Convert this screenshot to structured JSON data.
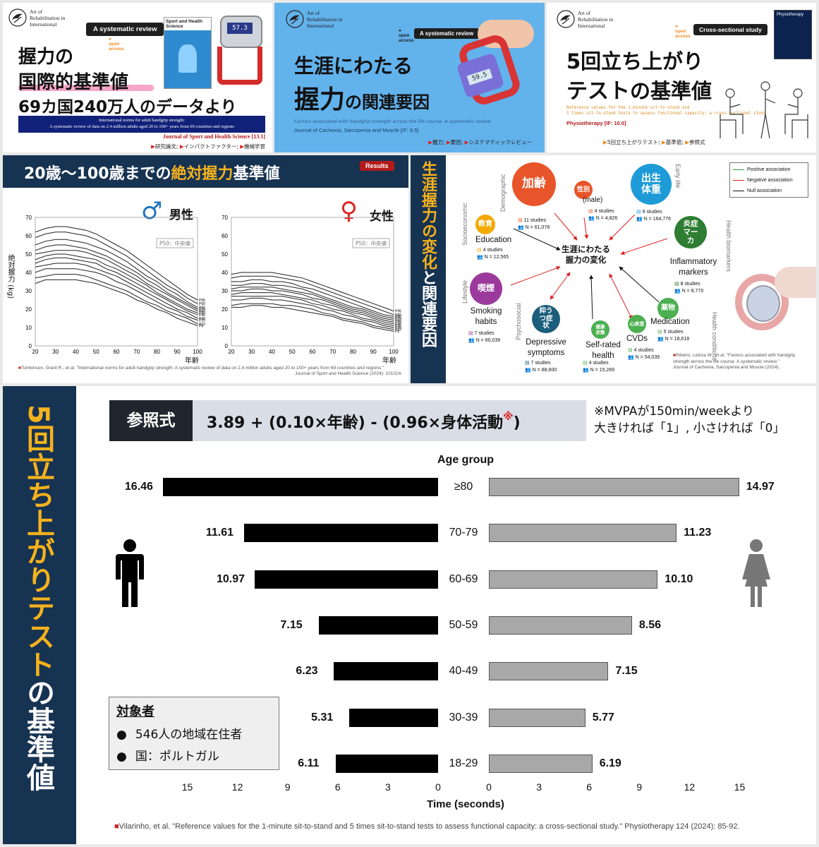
{
  "brand": {
    "line1": "Art of",
    "line2": "Rehabilitation in",
    "line3": "International"
  },
  "open_access": {
    "line1": "open",
    "line2": "access"
  },
  "card1": {
    "badge": "A systematic review",
    "journal_cover": "Sport and Health Science",
    "device_readout": "57.3",
    "title_line1": "握力の",
    "title_line2": "国際的基準値",
    "title_line3": "69カ国240万人のデータより",
    "en_line1": "International norms for adult handgrip strength:",
    "en_line2": "A systematic review of data on 2.4 million adults aged 20 to 100+ years from 69 countries and regions",
    "journal": "Journal of Sport and Health Science [13.1]",
    "tags": [
      "研究論文",
      "インパクトファクター",
      "機械学習"
    ]
  },
  "card2": {
    "badge": "A systematic review",
    "device_readout": "59.5",
    "title_line1": "生涯にわたる",
    "title_line2a": "握力",
    "title_line2b": "の関連要因",
    "en_title": "Factors associated with handgrip strength across the life course: A systematic review",
    "journal": "Journal of Cachexia, Sarcopenia and Muscle [IF: 9.5]",
    "tags": [
      "握力",
      "要因",
      "システマティックレビュー"
    ]
  },
  "card3": {
    "badge": "Cross-sectional study",
    "journal_cover": "Physiotherapy",
    "title_line1": "5回立ち上がり",
    "title_line2a": "テスト",
    "title_line2b": "の基準値",
    "en_line1": "Reference values for the 1-minute sit-to-stand and",
    "en_line2": "5 times sit-to-stand tests to assess functional capacity: a cross-sectional study",
    "journal": "Physiotherapy [IF: 10.0]",
    "tags": [
      "5回立ち上がりテスト",
      "基準値",
      "参照式"
    ]
  },
  "grip": {
    "title_a": "20歳〜100歳までの",
    "title_b": "絶対握力",
    "title_c": "基準値",
    "badge": "Results",
    "ylabel": "絶対握力 (kg)",
    "xlabel": "年齢",
    "male": "男性",
    "female": "女性",
    "legend_box": "P50：中央値",
    "citation_line1": "Tomkinson, Grant R., et al. \"International norms for adult handgrip strength: A systematic review of data on 2.4 million adults aged 20 to 100+ years from 69 countries and regions.\"",
    "citation_line2": "Journal of Sport and Health Science (2024): 101014."
  },
  "chart_data": [
    {
      "type": "line",
      "title": "男性",
      "xlabel": "年齢",
      "ylabel": "絶対握力 (kg)",
      "x": [
        20,
        25,
        30,
        35,
        40,
        45,
        50,
        55,
        60,
        65,
        70,
        75,
        80,
        85,
        90,
        95,
        100
      ],
      "xticks": [
        20,
        30,
        40,
        50,
        60,
        70,
        80,
        90,
        100
      ],
      "yticks": [
        0,
        10,
        20,
        30,
        40,
        50,
        60,
        70
      ],
      "xlim": [
        20,
        100
      ],
      "ylim": [
        0,
        70
      ],
      "grid": false,
      "series": [
        {
          "name": "P95",
          "values": [
            62,
            64,
            65,
            65,
            64,
            63,
            61,
            58,
            55,
            52,
            48,
            44,
            40,
            36,
            32,
            28,
            25
          ]
        },
        {
          "name": "P90",
          "values": [
            59,
            61,
            62,
            62,
            61,
            60,
            58,
            55,
            52,
            49,
            45,
            41,
            37,
            33,
            30,
            26,
            23
          ]
        },
        {
          "name": "P80",
          "values": [
            55,
            57,
            58,
            58,
            57,
            56,
            54,
            52,
            49,
            46,
            42,
            38,
            35,
            31,
            28,
            24,
            21
          ]
        },
        {
          "name": "P70",
          "values": [
            52,
            54,
            55,
            55,
            54,
            53,
            51,
            49,
            46,
            43,
            40,
            36,
            33,
            29,
            26,
            23,
            20
          ]
        },
        {
          "name": "P60",
          "values": [
            50,
            51,
            52,
            52,
            52,
            51,
            49,
            47,
            44,
            41,
            38,
            34,
            31,
            28,
            25,
            22,
            19
          ]
        },
        {
          "name": "P50",
          "values": [
            47,
            49,
            50,
            50,
            49,
            48,
            47,
            44,
            42,
            39,
            36,
            33,
            29,
            26,
            23,
            20,
            18
          ]
        },
        {
          "name": "P40",
          "values": [
            45,
            47,
            48,
            48,
            47,
            46,
            45,
            42,
            40,
            37,
            34,
            31,
            28,
            25,
            22,
            19,
            17
          ]
        },
        {
          "name": "P30",
          "values": [
            43,
            44,
            45,
            45,
            45,
            44,
            42,
            40,
            38,
            35,
            32,
            29,
            26,
            23,
            20,
            18,
            15
          ]
        },
        {
          "name": "P20",
          "values": [
            40,
            42,
            42,
            42,
            42,
            41,
            40,
            38,
            35,
            33,
            30,
            27,
            24,
            21,
            19,
            16,
            14
          ]
        },
        {
          "name": "P10",
          "values": [
            37,
            38,
            39,
            39,
            39,
            38,
            36,
            34,
            32,
            30,
            27,
            24,
            22,
            19,
            17,
            15,
            12
          ]
        },
        {
          "name": "P5",
          "values": [
            34,
            36,
            36,
            36,
            36,
            35,
            34,
            32,
            30,
            28,
            25,
            23,
            20,
            18,
            15,
            13,
            11
          ]
        }
      ]
    },
    {
      "type": "line",
      "title": "女性",
      "xlabel": "年齢",
      "x": [
        20,
        25,
        30,
        35,
        40,
        45,
        50,
        55,
        60,
        65,
        70,
        75,
        80,
        85,
        90,
        95,
        100
      ],
      "xticks": [
        20,
        30,
        40,
        50,
        60,
        70,
        80,
        90,
        100
      ],
      "yticks": [
        0,
        10,
        20,
        30,
        40,
        50,
        60,
        70
      ],
      "xlim": [
        20,
        100
      ],
      "ylim": [
        0,
        70
      ],
      "grid": false,
      "series": [
        {
          "name": "P95",
          "values": [
            39,
            40,
            40,
            40,
            40,
            39,
            38,
            37,
            35,
            33,
            31,
            29,
            27,
            25,
            23,
            21,
            19
          ]
        },
        {
          "name": "P90",
          "values": [
            37,
            38,
            38,
            38,
            38,
            37,
            36,
            35,
            33,
            31,
            29,
            27,
            25,
            23,
            21,
            19,
            17
          ]
        },
        {
          "name": "P80",
          "values": [
            35,
            35,
            36,
            36,
            35,
            35,
            34,
            32,
            31,
            29,
            27,
            25,
            23,
            21,
            19,
            17,
            16
          ]
        },
        {
          "name": "P70",
          "values": [
            33,
            33,
            34,
            34,
            33,
            33,
            32,
            31,
            29,
            27,
            25,
            23,
            21,
            20,
            18,
            16,
            15
          ]
        },
        {
          "name": "P60",
          "values": [
            31,
            32,
            32,
            32,
            32,
            31,
            30,
            29,
            28,
            26,
            24,
            22,
            20,
            19,
            17,
            15,
            14
          ]
        },
        {
          "name": "P50",
          "values": [
            30,
            30,
            31,
            31,
            30,
            30,
            29,
            28,
            26,
            25,
            23,
            21,
            19,
            18,
            16,
            14,
            13
          ]
        },
        {
          "name": "P40",
          "values": [
            28,
            29,
            29,
            29,
            29,
            28,
            27,
            26,
            25,
            23,
            22,
            20,
            18,
            17,
            15,
            13,
            12
          ]
        },
        {
          "name": "P30",
          "values": [
            27,
            27,
            27,
            27,
            27,
            27,
            26,
            25,
            23,
            22,
            20,
            19,
            17,
            15,
            14,
            12,
            11
          ]
        },
        {
          "name": "P20",
          "values": [
            25,
            25,
            26,
            26,
            25,
            25,
            24,
            23,
            22,
            20,
            19,
            17,
            16,
            14,
            13,
            11,
            10
          ]
        },
        {
          "name": "P10",
          "values": [
            22,
            23,
            23,
            23,
            23,
            22,
            22,
            21,
            20,
            18,
            17,
            15,
            14,
            13,
            11,
            10,
            9
          ]
        },
        {
          "name": "P5",
          "values": [
            21,
            21,
            22,
            22,
            21,
            21,
            20,
            19,
            18,
            17,
            16,
            14,
            13,
            12,
            10,
            9,
            8
          ]
        }
      ]
    },
    {
      "type": "bar",
      "orientation": "horizontal-butterfly",
      "title": "Age group",
      "xlabel": "Time (seconds)",
      "categories": [
        "≥80",
        "70-79",
        "60-69",
        "50-59",
        "40-49",
        "30-39",
        "18-29"
      ],
      "series": [
        {
          "values": [
            16.46,
            11.61,
            10.97,
            7.15,
            6.23,
            5.31,
            6.11
          ],
          "color": "#000000"
        },
        {
          "values": [
            14.97,
            11.23,
            10.1,
            8.56,
            7.15,
            5.77,
            6.19
          ],
          "color": "#a8a8a8"
        }
      ],
      "xticks_left": [
        15,
        12,
        9,
        6,
        3,
        0
      ],
      "xticks_right": [
        0,
        3,
        6,
        9,
        12,
        15
      ],
      "xlim": [
        0,
        17
      ]
    }
  ],
  "factors": {
    "vertical_title_a": "生涯握力の変化",
    "vertical_title_b": "と",
    "vertical_title_c": "関連要因",
    "center_line1": "生涯にわたる",
    "center_line2": "握力の変化",
    "legend": [
      "Positive association",
      "Negative association",
      "Null association"
    ],
    "categories": [
      "Demographic",
      "Early life",
      "Socioeconomic",
      "Health biomarkers",
      "Lifestyle",
      "Psychosocial",
      "Health conditions"
    ],
    "bubbles": [
      {
        "jp": "加齢",
        "en": "",
        "studies": "11 studies",
        "n": "N = 61,078",
        "color": "#e8552a"
      },
      {
        "jp": "性別",
        "en": "(male)",
        "studies": "4 studies",
        "n": "N = 4,826",
        "color": "#e8552a"
      },
      {
        "jp": "出生体重",
        "en": "",
        "studies": "9 studies",
        "n": "N = 164,776",
        "color": "#1e9bd7"
      },
      {
        "jp": "教育",
        "en": "Education",
        "studies": "4 studies",
        "n": "N = 12,565",
        "color": "#f2a900"
      },
      {
        "jp": "炎症マーカ",
        "en": "Inflammatory markers",
        "studies": "8 studies",
        "n": "N = 8,770",
        "color": "#2e7d32"
      },
      {
        "jp": "喫煙",
        "en": "Smoking habits",
        "studies": "7 studies",
        "n": "N = 60,039",
        "color": "#9b3a9c"
      },
      {
        "jp": "抑うつ症状",
        "en": "Depressive symptoms",
        "studies": "7 studies",
        "n": "N = 88,600",
        "color": "#1b5e7b"
      },
      {
        "jp": "健康状態",
        "en": "Self-rated health",
        "studies": "4 studies",
        "n": "N = 15,269",
        "color": "#4caf50"
      },
      {
        "jp": "心疾患",
        "en": "CVDs",
        "studies": "4 studies",
        "n": "N = 54,039",
        "color": "#4caf50"
      },
      {
        "jp": "薬物",
        "en": "Medication",
        "studies": "5 studies",
        "n": "N = 18,618",
        "color": "#4caf50"
      }
    ],
    "citation_line1": "Ribeiro, Leticia W., et al. \"Factors associated with handgrip",
    "citation_line2": "strength across the life course: A systematic review.\"",
    "citation_line3": "Journal of Cachexia, Sarcopenia and Muscle (2024)."
  },
  "sts": {
    "vertical_title_a": "5回立ち上がりテスト",
    "vertical_title_b": "の基準値",
    "formula_label": "参照式",
    "formula": "3.89 + (0.10×年齢) - (0.96×身体活動",
    "formula_mark": "※",
    "formula_end": ")",
    "note_line1": "※MVPAが150min/weekより",
    "note_line2": "大きければ「1」, 小さければ「0」",
    "subjects_title": "対象者",
    "subjects": [
      "546人の地域在住者",
      "国：ポルトガル"
    ],
    "citation": "Vilarinho, et al. \"Reference values for the 1-minute sit-to-stand and 5 times sit-to-stand tests to assess functional capacity: a cross-sectional study.\" Physiotherapy 124 (2024): 85-92."
  }
}
